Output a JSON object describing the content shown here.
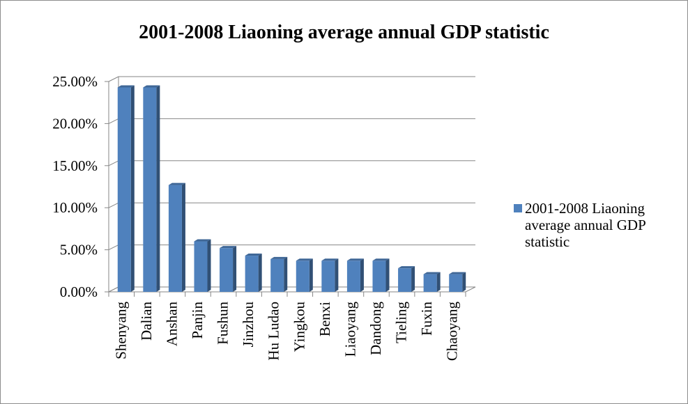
{
  "chart_data": {
    "type": "bar",
    "title": "2001-2008 Liaoning average annual GDP statistic",
    "categories": [
      "Shenyang",
      "Dalian",
      "Anshan",
      "Panjin",
      "Fushun",
      "Jinzhou",
      "Hu Ludao",
      "Yingkou",
      "Benxi",
      "Liaoyang",
      "Dandong",
      "Tieling",
      "Fuxin",
      "Chaoyang"
    ],
    "series": [
      {
        "name": "2001-2008 Liaoning average annual GDP statistic",
        "values": [
          0.243,
          0.243,
          0.127,
          0.06,
          0.052,
          0.043,
          0.039,
          0.037,
          0.037,
          0.037,
          0.037,
          0.028,
          0.021,
          0.021
        ],
        "color": "#4f81bd"
      }
    ],
    "ylim": [
      0,
      0.25
    ],
    "yticks": [
      "0.00%",
      "5.00%",
      "10.00%",
      "15.00%",
      "20.00%",
      "25.00%"
    ],
    "grid": true,
    "legend_position": "right",
    "style": "3d-column"
  }
}
